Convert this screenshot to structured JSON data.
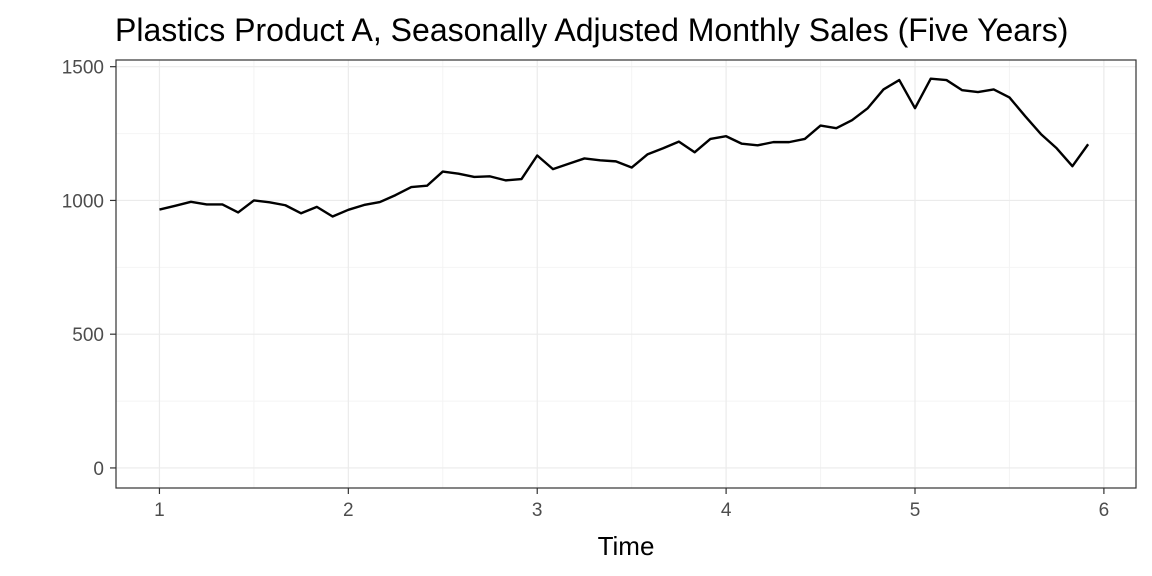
{
  "chart_data": {
    "type": "line",
    "title": "Plastics Product A, Seasonally Adjusted Monthly Sales (Five Years)",
    "xlabel": "Time",
    "ylabel": "",
    "xlim": [
      0.77,
      6.17
    ],
    "ylim": [
      -75,
      1525
    ],
    "x_ticks": [
      1,
      2,
      3,
      4,
      5,
      6
    ],
    "y_ticks": [
      0,
      500,
      1000,
      1500
    ],
    "grid": true,
    "legend": "none",
    "colors": {
      "line": "#000000",
      "grid_major": "#ebebeb",
      "grid_minor": "#f4f4f4",
      "panel_border": "#333333",
      "tick_label": "#4d4d4d"
    },
    "series": [
      {
        "x": [
          1.0,
          1.0833,
          1.1667,
          1.25,
          1.3333,
          1.4167,
          1.5,
          1.5833,
          1.6667,
          1.75,
          1.8333,
          1.9167,
          2.0,
          2.0833,
          2.1667,
          2.25,
          2.3333,
          2.4167,
          2.5,
          2.5833,
          2.6667,
          2.75,
          2.8333,
          2.9167,
          3.0,
          3.0833,
          3.1667,
          3.25,
          3.3333,
          3.4167,
          3.5,
          3.5833,
          3.6667,
          3.75,
          3.8333,
          3.9167,
          4.0,
          4.0833,
          4.1667,
          4.25,
          4.3333,
          4.4167,
          4.5,
          4.5833,
          4.6667,
          4.75,
          4.8333,
          4.9167,
          5.0,
          5.0833,
          5.1667,
          5.25,
          5.3333,
          5.4167,
          5.5,
          5.5833,
          5.6667,
          5.75,
          5.8333,
          5.9167
        ],
        "y": [
          966,
          980,
          995,
          985,
          985,
          955,
          1000,
          993,
          982,
          952,
          976,
          940,
          965,
          983,
          994,
          1020,
          1050,
          1055,
          1108,
          1100,
          1088,
          1090,
          1075,
          1080,
          1168,
          1117,
          1137,
          1157,
          1150,
          1146,
          1123,
          1172,
          1195,
          1220,
          1180,
          1230,
          1240,
          1212,
          1206,
          1218,
          1218,
          1230,
          1280,
          1270,
          1300,
          1345,
          1415,
          1450,
          1345,
          1455,
          1450,
          1412,
          1405,
          1415,
          1385,
          1315,
          1248,
          1195,
          1128,
          1210
        ]
      }
    ]
  }
}
